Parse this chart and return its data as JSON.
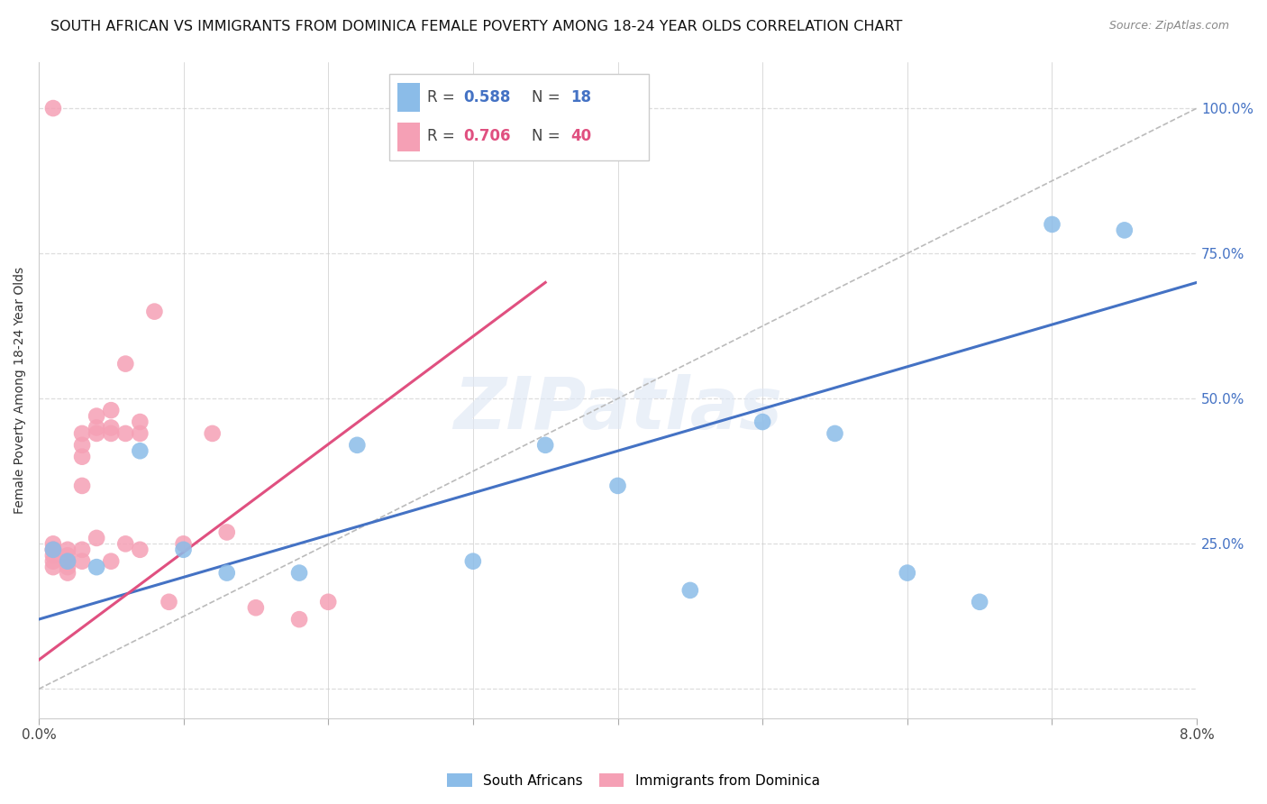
{
  "title": "SOUTH AFRICAN VS IMMIGRANTS FROM DOMINICA FEMALE POVERTY AMONG 18-24 YEAR OLDS CORRELATION CHART",
  "source": "Source: ZipAtlas.com",
  "ylabel": "Female Poverty Among 18-24 Year Olds",
  "right_yticklabels": [
    "",
    "25.0%",
    "50.0%",
    "75.0%",
    "100.0%"
  ],
  "xmin": 0.0,
  "xmax": 0.08,
  "ymin": -0.05,
  "ymax": 1.08,
  "blue_R": "0.588",
  "blue_N": "18",
  "pink_R": "0.706",
  "pink_N": "40",
  "blue_color": "#8BBCE8",
  "pink_color": "#F5A0B5",
  "blue_label": "South Africans",
  "pink_label": "Immigrants from Dominica",
  "blue_line_color": "#4472C4",
  "pink_line_color": "#E05080",
  "diag_line_color": "#BBBBBB",
  "watermark": "ZIPatlas",
  "background_color": "#FFFFFF",
  "grid_color": "#DDDDDD",
  "axis_color": "#4472C4",
  "title_color": "#111111",
  "title_fontsize": 11.5,
  "blue_points_x": [
    0.001,
    0.002,
    0.004,
    0.007,
    0.01,
    0.013,
    0.018,
    0.022,
    0.03,
    0.035,
    0.04,
    0.045,
    0.05,
    0.055,
    0.06,
    0.065,
    0.07,
    0.075
  ],
  "blue_points_y": [
    0.24,
    0.22,
    0.21,
    0.41,
    0.24,
    0.2,
    0.2,
    0.42,
    0.22,
    0.42,
    0.35,
    0.17,
    0.46,
    0.44,
    0.2,
    0.15,
    0.8,
    0.79
  ],
  "pink_points_x": [
    0.001,
    0.001,
    0.001,
    0.001,
    0.001,
    0.001,
    0.002,
    0.002,
    0.002,
    0.002,
    0.002,
    0.003,
    0.003,
    0.003,
    0.003,
    0.003,
    0.003,
    0.004,
    0.004,
    0.004,
    0.004,
    0.005,
    0.005,
    0.005,
    0.005,
    0.006,
    0.006,
    0.006,
    0.007,
    0.007,
    0.007,
    0.008,
    0.009,
    0.01,
    0.012,
    0.013,
    0.015,
    0.018,
    0.02,
    0.001
  ],
  "pink_points_y": [
    0.24,
    0.25,
    0.24,
    0.23,
    0.22,
    0.21,
    0.24,
    0.23,
    0.22,
    0.21,
    0.2,
    0.42,
    0.44,
    0.4,
    0.35,
    0.24,
    0.22,
    0.47,
    0.45,
    0.44,
    0.26,
    0.48,
    0.45,
    0.44,
    0.22,
    0.56,
    0.44,
    0.25,
    0.46,
    0.44,
    0.24,
    0.65,
    0.15,
    0.25,
    0.44,
    0.27,
    0.14,
    0.12,
    0.15,
    1.0
  ]
}
